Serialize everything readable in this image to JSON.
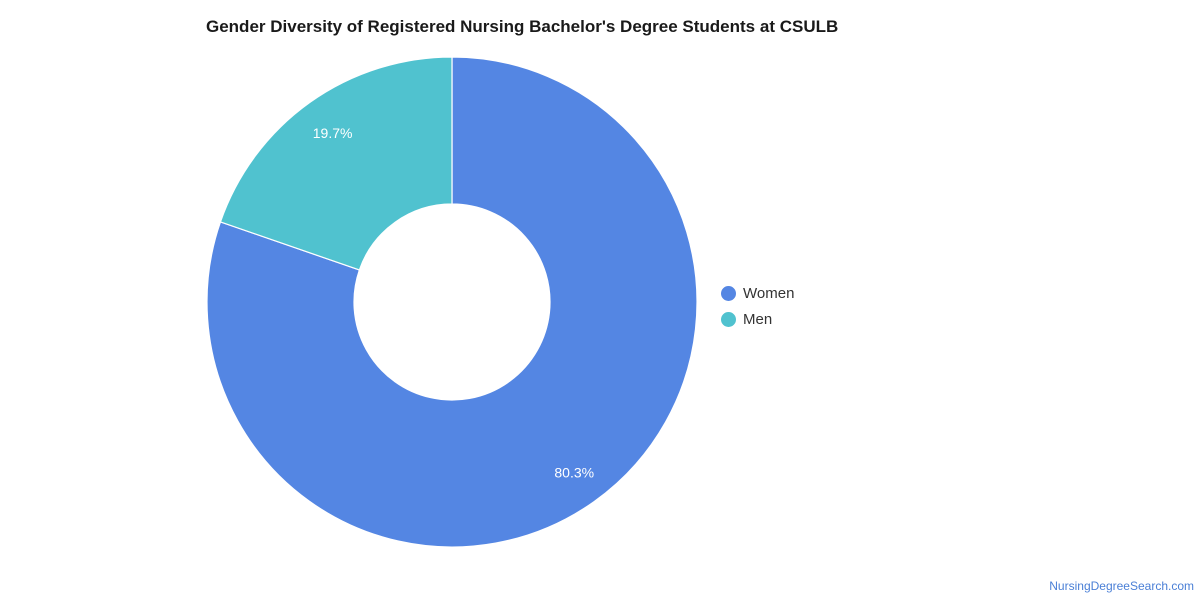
{
  "chart_data": {
    "type": "pie",
    "title": "Gender Diversity of Registered Nursing Bachelor's Degree Students at CSULB",
    "donut": true,
    "categories": [
      "Women",
      "Men"
    ],
    "values": [
      80.3,
      19.7
    ],
    "value_labels": [
      "80.3%",
      "19.7%"
    ],
    "colors": [
      "#5486e3",
      "#50c2cf"
    ],
    "legend_position": "right"
  },
  "watermark": "NursingDegreeSearch.com"
}
